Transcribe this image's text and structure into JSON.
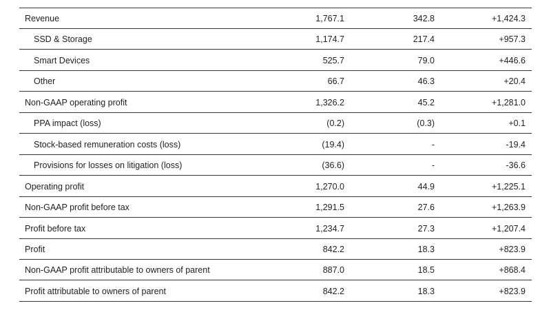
{
  "table": {
    "rows": [
      {
        "label": "Revenue",
        "indent": false,
        "cells": [
          "1,767.1",
          "342.8",
          "+1,424.3"
        ]
      },
      {
        "label": "SSD & Storage",
        "indent": true,
        "cells": [
          "1,174.7",
          "217.4",
          "+957.3"
        ]
      },
      {
        "label": "Smart Devices",
        "indent": true,
        "cells": [
          "525.7",
          "79.0",
          "+446.6"
        ]
      },
      {
        "label": "Other",
        "indent": true,
        "cells": [
          "66.7",
          "46.3",
          "+20.4"
        ]
      },
      {
        "label": "Non-GAAP operating profit",
        "indent": false,
        "cells": [
          "1,326.2",
          "45.2",
          "+1,281.0"
        ]
      },
      {
        "label": "PPA impact (loss)",
        "indent": true,
        "cells": [
          "(0.2)",
          "(0.3)",
          "+0.1"
        ]
      },
      {
        "label": "Stock-based remuneration costs (loss)",
        "indent": true,
        "cells": [
          "(19.4)",
          "-",
          "-19.4"
        ]
      },
      {
        "label": "Provisions for losses on litigation (loss)",
        "indent": true,
        "cells": [
          "(36.6)",
          "-",
          "-36.6"
        ]
      },
      {
        "label": "Operating profit",
        "indent": false,
        "cells": [
          "1,270.0",
          "44.9",
          "+1,225.1"
        ]
      },
      {
        "label": "Non-GAAP profit before tax",
        "indent": false,
        "cells": [
          "1,291.5",
          "27.6",
          "+1,263.9"
        ]
      },
      {
        "label": "Profit before tax",
        "indent": false,
        "cells": [
          "1,234.7",
          "27.3",
          "+1,207.4"
        ]
      },
      {
        "label": "Profit",
        "indent": false,
        "cells": [
          "842.2",
          "18.3",
          "+823.9"
        ]
      },
      {
        "label": "Non-GAAP profit attributable to owners of parent",
        "indent": false,
        "cells": [
          "887.0",
          "18.5",
          "+868.4"
        ]
      },
      {
        "label": "Profit attributable to owners of parent",
        "indent": false,
        "cells": [
          "842.2",
          "18.3",
          "+823.9"
        ]
      }
    ]
  }
}
